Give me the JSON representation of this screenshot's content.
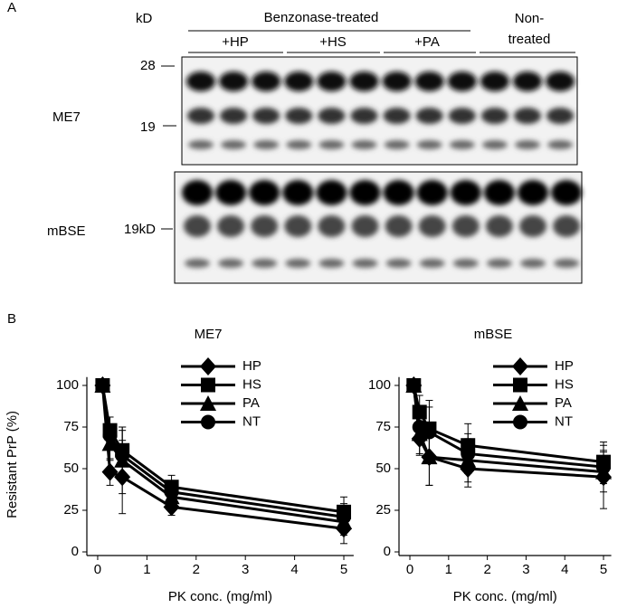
{
  "panel_a": {
    "label": "A",
    "kd_label": "kD",
    "group_label": "Benzonase-treated",
    "lanes": [
      "+HP",
      "+HS",
      "+PA"
    ],
    "non_treated": [
      "Non-",
      "treated"
    ],
    "markers": [
      "28",
      "19",
      "19kD"
    ],
    "rows": [
      "ME7",
      "mBSE"
    ]
  },
  "panel_b": {
    "label": "B"
  },
  "chart_data": [
    {
      "type": "line",
      "title": "ME7",
      "y_label": "Resistant PrP (%)",
      "x_label": "PK conc. (mg/ml)",
      "x": [
        0.1,
        0.25,
        0.5,
        1.5,
        5
      ],
      "xlim": [
        -0.15,
        5.2
      ],
      "xticks": [
        0,
        1,
        2,
        3,
        4,
        5
      ],
      "ylim": [
        0,
        105
      ],
      "yticks": [
        0,
        25,
        50,
        75,
        100
      ],
      "legend": "upper right",
      "series": [
        {
          "name": "HP",
          "color": "#000000",
          "marker": "diamond",
          "values": [
            100,
            48,
            45,
            27,
            14
          ],
          "errors": [
            2,
            8,
            22,
            5,
            9
          ]
        },
        {
          "name": "HS",
          "color": "#000000",
          "marker": "square",
          "values": [
            100,
            73,
            61,
            39,
            24
          ],
          "errors": [
            2,
            8,
            14,
            7,
            9
          ]
        },
        {
          "name": "PA",
          "color": "#000000",
          "marker": "triangle",
          "values": [
            100,
            65,
            55,
            33,
            18
          ],
          "errors": [
            2,
            10,
            20,
            6,
            8
          ]
        },
        {
          "name": "NT",
          "color": "#000000",
          "marker": "circle",
          "values": [
            100,
            70,
            58,
            36,
            21
          ],
          "errors": [
            2,
            6,
            15,
            6,
            8
          ]
        }
      ]
    },
    {
      "type": "line",
      "title": "mBSE",
      "x_label": "PK conc. (mg/ml)",
      "x": [
        0.1,
        0.25,
        0.5,
        1.5,
        5
      ],
      "xlim": [
        -0.15,
        5.2
      ],
      "xticks": [
        0,
        1,
        2,
        3,
        4,
        5
      ],
      "ylim": [
        0,
        105
      ],
      "yticks": [
        0,
        25,
        50,
        75,
        100
      ],
      "legend": "upper right",
      "series": [
        {
          "name": "HP",
          "color": "#000000",
          "marker": "diamond",
          "values": [
            100,
            68,
            57,
            50,
            45
          ],
          "errors": [
            2,
            10,
            17,
            11,
            19
          ]
        },
        {
          "name": "HS",
          "color": "#000000",
          "marker": "square",
          "values": [
            100,
            84,
            74,
            64,
            54
          ],
          "errors": [
            2,
            10,
            17,
            13,
            12
          ]
        },
        {
          "name": "PA",
          "color": "#000000",
          "marker": "triangle",
          "values": [
            100,
            71,
            57,
            55,
            48
          ],
          "errors": [
            2,
            12,
            17,
            13,
            12
          ]
        },
        {
          "name": "NT",
          "color": "#000000",
          "marker": "circle",
          "values": [
            100,
            75,
            72,
            59,
            51
          ],
          "errors": [
            2,
            8,
            15,
            12,
            10
          ]
        }
      ]
    }
  ]
}
